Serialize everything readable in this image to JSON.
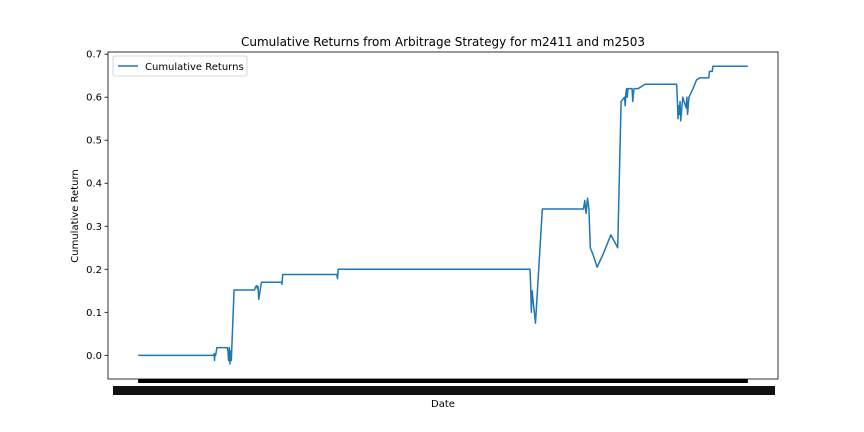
{
  "chart_data": {
    "type": "line",
    "title": "Cumulative Returns from Arbitrage Strategy for m2411 and m2503",
    "xlabel": "Date",
    "ylabel": "Cumulative Return",
    "ylim": [
      -0.055,
      0.705
    ],
    "y_ticks": [
      0.0,
      0.1,
      0.2,
      0.3,
      0.4,
      0.5,
      0.6,
      0.7
    ],
    "y_tick_labels": [
      "0.0",
      "0.1",
      "0.2",
      "0.3",
      "0.4",
      "0.5",
      "0.6",
      "0.7"
    ],
    "x_ticks_note": "date tick labels are overplotted and illegible",
    "grid": false,
    "legend": {
      "position": "upper-left",
      "entries": [
        "Cumulative Returns"
      ]
    },
    "series": [
      {
        "name": "Cumulative Returns",
        "color": "#1f77b4",
        "x_index": [
          0,
          20,
          40,
          60,
          80,
          100,
          110,
          111,
          111.5,
          112,
          113,
          115,
          130,
          131,
          132,
          133,
          134,
          135,
          136,
          140,
          160,
          170,
          171,
          173,
          174,
          175,
          176,
          180,
          200,
          206,
          209,
          210,
          211,
          230,
          240,
          250,
          255,
          260,
          280,
          290,
          291,
          292,
          300,
          320,
          329,
          330,
          340,
          400,
          500,
          520,
          540,
          560,
          572,
          573,
          574,
          575,
          580,
          590,
          595,
          600,
          605,
          606,
          607,
          608,
          615,
          620,
          630,
          640,
          650,
          651,
          652,
          653,
          654,
          655,
          656,
          658,
          660,
          665,
          670,
          680,
          690,
          700,
          705,
          710,
          711,
          712,
          713,
          714,
          715,
          720,
          721,
          722,
          723,
          724,
          725,
          730,
          740,
          745,
          746,
          747,
          748,
          749,
          750,
          751,
          752,
          753,
          754,
          755,
          756,
          757,
          760,
          761,
          770,
          772,
          775,
          780,
          786,
          787,
          788,
          789,
          790,
          791,
          792,
          795,
          800,
          801,
          802,
          804,
          810,
          815,
          820,
          825,
          830,
          832,
          833,
          834,
          835,
          836,
          837,
          838,
          839,
          840,
          845,
          850,
          851,
          860,
          861,
          870,
          871,
          880,
          890
        ],
        "values": [
          0.0,
          0.0,
          0.0,
          0.0,
          0.0,
          0.0,
          0.0,
          0.004,
          -0.012,
          0.002,
          0.0,
          0.018,
          0.018,
          0.012,
          -0.012,
          0.018,
          -0.02,
          0.01,
          -0.012,
          0.152,
          0.152,
          0.152,
          0.158,
          0.162,
          0.155,
          0.16,
          0.13,
          0.17,
          0.17,
          0.17,
          0.17,
          0.165,
          0.188,
          0.188,
          0.188,
          0.188,
          0.188,
          0.188,
          0.188,
          0.188,
          0.178,
          0.2,
          0.2,
          0.2,
          0.2,
          0.2,
          0.2,
          0.2,
          0.2,
          0.2,
          0.2,
          0.2,
          0.2,
          0.16,
          0.1,
          0.15,
          0.075,
          0.34,
          0.34,
          0.34,
          0.34,
          0.34,
          0.34,
          0.34,
          0.34,
          0.34,
          0.34,
          0.34,
          0.34,
          0.35,
          0.36,
          0.34,
          0.33,
          0.35,
          0.365,
          0.34,
          0.25,
          0.23,
          0.205,
          0.24,
          0.28,
          0.25,
          0.59,
          0.6,
          0.58,
          0.61,
          0.62,
          0.6,
          0.62,
          0.62,
          0.62,
          0.59,
          0.61,
          0.62,
          0.62,
          0.62,
          0.63,
          0.63,
          0.63,
          0.63,
          0.63,
          0.63,
          0.63,
          0.63,
          0.63,
          0.63,
          0.63,
          0.63,
          0.63,
          0.63,
          0.63,
          0.63,
          0.63,
          0.63,
          0.63,
          0.63,
          0.63,
          0.6,
          0.55,
          0.58,
          0.56,
          0.59,
          0.545,
          0.6,
          0.575,
          0.6,
          0.56,
          0.6,
          0.62,
          0.64,
          0.645,
          0.645,
          0.645,
          0.645,
          0.645,
          0.66,
          0.66,
          0.66,
          0.66,
          0.66,
          0.672,
          0.672,
          0.672,
          0.672,
          0.672,
          0.672,
          0.672,
          0.672,
          0.672,
          0.672,
          0.672
        ]
      }
    ]
  }
}
